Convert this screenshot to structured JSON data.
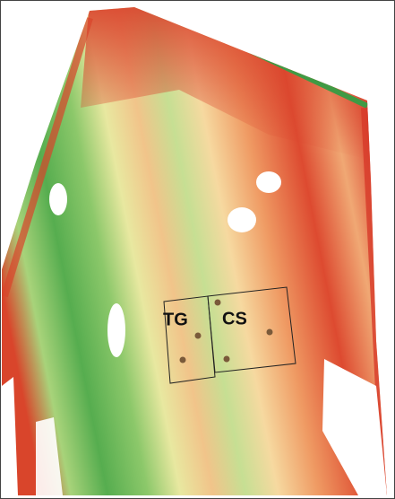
{
  "zones": [
    {
      "label": "TG"
    },
    {
      "label": "CS"
    }
  ]
}
